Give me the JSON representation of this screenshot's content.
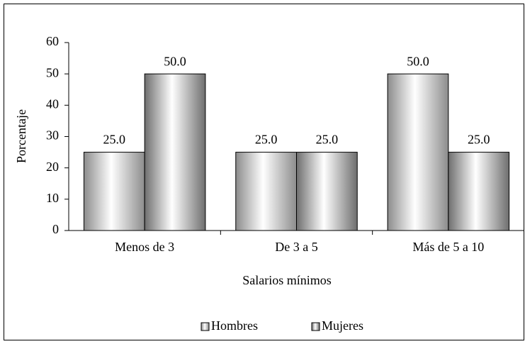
{
  "chart_data": {
    "type": "bar",
    "categories": [
      "Menos de 3",
      "De 3 a 5",
      "Más de 5 a 10"
    ],
    "series": [
      {
        "name": "Hombres",
        "color": "#8c8c8c",
        "values": [
          25,
          25,
          50
        ],
        "value_labels": [
          "25.0",
          "25.0",
          "50.0"
        ]
      },
      {
        "name": "Mujeres",
        "color": "#6e6e6e",
        "values": [
          50,
          25,
          25
        ],
        "value_labels": [
          "50.0",
          "25.0",
          "25.0"
        ]
      }
    ],
    "ylabel": "Porcentaje",
    "xlabel": "Salarios mínimos",
    "ylim": [
      0,
      60
    ],
    "yticks": [
      0,
      10,
      20,
      30,
      40,
      50,
      60
    ],
    "grid": false,
    "legend": "bottom"
  }
}
